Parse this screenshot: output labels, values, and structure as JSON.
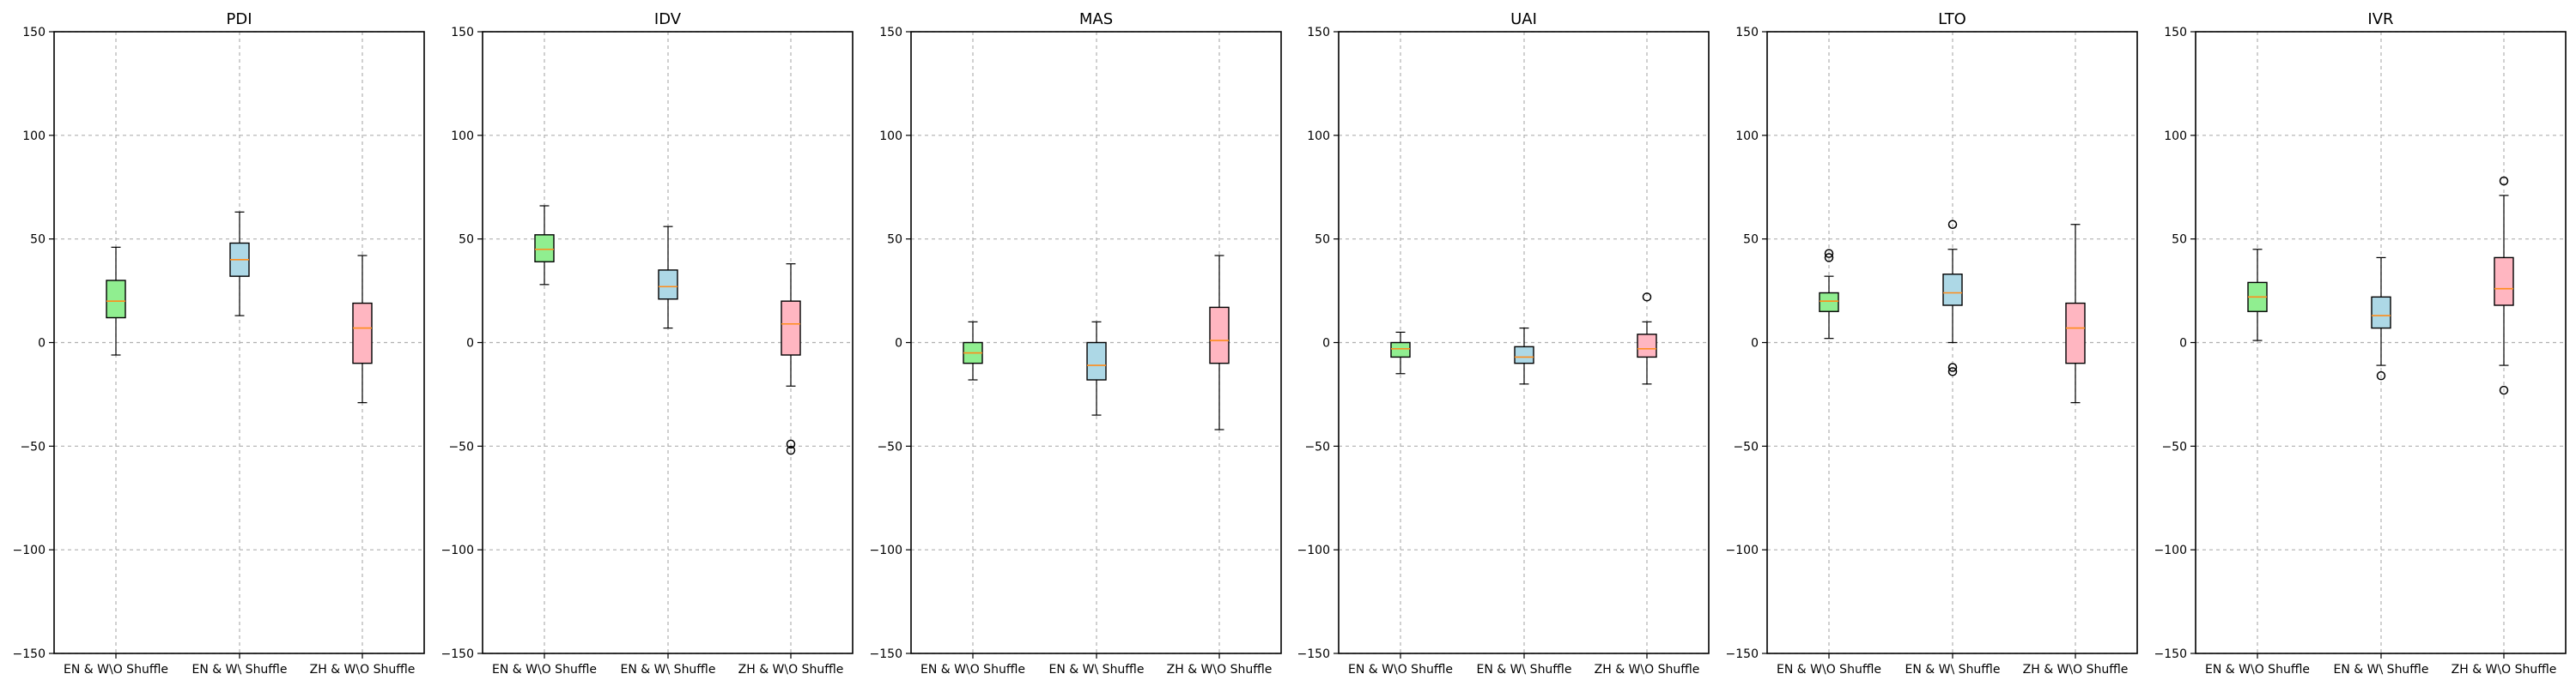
{
  "chart_data": {
    "type": "box",
    "ylim": [
      -150,
      150
    ],
    "yticks": [
      -150,
      -100,
      -50,
      0,
      50,
      100,
      150
    ],
    "grid": true,
    "categories": [
      "EN & W\\O Shuffle",
      "EN & W\\ Shuffle",
      "ZH & W\\O Shuffle"
    ],
    "colors": [
      "#90ee90",
      "#add8e6",
      "#ffb6c1"
    ],
    "median_color": "#ff8c1a",
    "panels": [
      {
        "title": "PDI",
        "boxes": [
          {
            "whislo": -6,
            "q1": 12,
            "med": 20,
            "q3": 30,
            "whishi": 46,
            "fliers": []
          },
          {
            "whislo": 13,
            "q1": 32,
            "med": 40,
            "q3": 48,
            "whishi": 63,
            "fliers": []
          },
          {
            "whislo": -29,
            "q1": -10,
            "med": 7,
            "q3": 19,
            "whishi": 42,
            "fliers": []
          }
        ]
      },
      {
        "title": "IDV",
        "boxes": [
          {
            "whislo": 28,
            "q1": 39,
            "med": 45,
            "q3": 52,
            "whishi": 66,
            "fliers": []
          },
          {
            "whislo": 7,
            "q1": 21,
            "med": 27,
            "q3": 35,
            "whishi": 56,
            "fliers": []
          },
          {
            "whislo": -21,
            "q1": -6,
            "med": 9,
            "q3": 20,
            "whishi": 38,
            "fliers": [
              -49,
              -52
            ]
          }
        ]
      },
      {
        "title": "MAS",
        "boxes": [
          {
            "whislo": -18,
            "q1": -10,
            "med": -5,
            "q3": 0,
            "whishi": 10,
            "fliers": []
          },
          {
            "whislo": -35,
            "q1": -18,
            "med": -11,
            "q3": 0,
            "whishi": 10,
            "fliers": []
          },
          {
            "whislo": -42,
            "q1": -10,
            "med": 1,
            "q3": 17,
            "whishi": 42,
            "fliers": []
          }
        ]
      },
      {
        "title": "UAI",
        "boxes": [
          {
            "whislo": -15,
            "q1": -7,
            "med": -3,
            "q3": 0,
            "whishi": 5,
            "fliers": []
          },
          {
            "whislo": -20,
            "q1": -10,
            "med": -7,
            "q3": -2,
            "whishi": 7,
            "fliers": []
          },
          {
            "whislo": -20,
            "q1": -7,
            "med": -3,
            "q3": 4,
            "whishi": 10,
            "fliers": [
              22
            ]
          }
        ]
      },
      {
        "title": "LTO",
        "boxes": [
          {
            "whislo": 2,
            "q1": 15,
            "med": 20,
            "q3": 24,
            "whishi": 32,
            "fliers": [
              41,
              43
            ]
          },
          {
            "whislo": 0,
            "q1": 18,
            "med": 24,
            "q3": 33,
            "whishi": 45,
            "fliers": [
              57,
              -12,
              -14
            ]
          },
          {
            "whislo": -29,
            "q1": -10,
            "med": 7,
            "q3": 19,
            "whishi": 57,
            "fliers": []
          }
        ]
      },
      {
        "title": "IVR",
        "boxes": [
          {
            "whislo": 1,
            "q1": 15,
            "med": 22,
            "q3": 29,
            "whishi": 45,
            "fliers": []
          },
          {
            "whislo": -11,
            "q1": 7,
            "med": 13,
            "q3": 22,
            "whishi": 41,
            "fliers": [
              -16
            ]
          },
          {
            "whislo": -11,
            "q1": 18,
            "med": 26,
            "q3": 41,
            "whishi": 71,
            "fliers": [
              78,
              -23
            ]
          }
        ]
      }
    ]
  }
}
